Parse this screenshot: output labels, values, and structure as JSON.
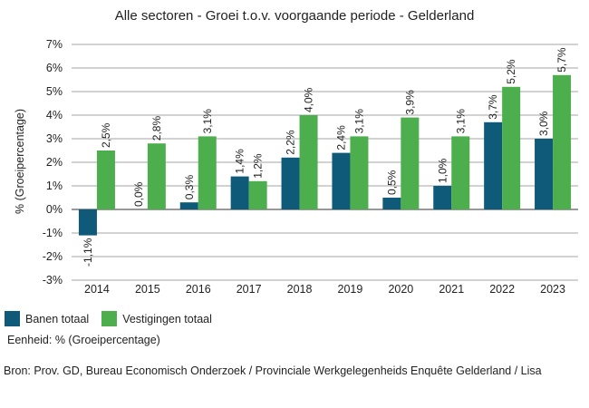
{
  "colors": {
    "banen": "#0e5a78",
    "vestigingen": "#4cae4c",
    "grid": "#a6a6a6",
    "axis": "#333333"
  },
  "chart_data": {
    "type": "bar",
    "title": "Alle sectoren - Groei t.o.v. voorgaande periode - Gelderland",
    "xlabel": "",
    "ylabel": "% (Groeipercentage)",
    "ylim": [
      -3,
      7
    ],
    "yticks": [
      "-3%",
      "-2%",
      "-1%",
      "0%",
      "1%",
      "2%",
      "3%",
      "4%",
      "5%",
      "6%",
      "7%"
    ],
    "grid": true,
    "legend_position": "bottom-left",
    "categories": [
      "2014",
      "2015",
      "2016",
      "2017",
      "2018",
      "2019",
      "2020",
      "2021",
      "2022",
      "2023"
    ],
    "series": [
      {
        "name": "Banen totaal",
        "values": [
          -1.1,
          0.0,
          0.3,
          1.4,
          2.2,
          2.4,
          0.5,
          1.0,
          3.7,
          3.0
        ],
        "labels": [
          "-1,1%",
          "0,0%",
          "0,3%",
          "1,4%",
          "2,2%",
          "2,4%",
          "0,5%",
          "1,0%",
          "3,7%",
          "3,0%"
        ]
      },
      {
        "name": "Vestigingen totaal",
        "values": [
          2.5,
          2.8,
          3.1,
          1.2,
          4.0,
          3.1,
          3.9,
          3.1,
          5.2,
          5.7
        ],
        "labels": [
          "2,5%",
          "2,8%",
          "3,1%",
          "1,2%",
          "4,0%",
          "3,1%",
          "3,9%",
          "3,1%",
          "5,2%",
          "5,7%"
        ]
      }
    ]
  },
  "legend": {
    "banen": "Banen totaal",
    "vestigingen": "Vestigingen totaal"
  },
  "unit_text": "Eenheid: % (Groeipercentage)",
  "source_text": "Bron: Prov. GD, Bureau Economisch Onderzoek / Provinciale Werkgelegenheids Enquête Gelderland / Lisa"
}
